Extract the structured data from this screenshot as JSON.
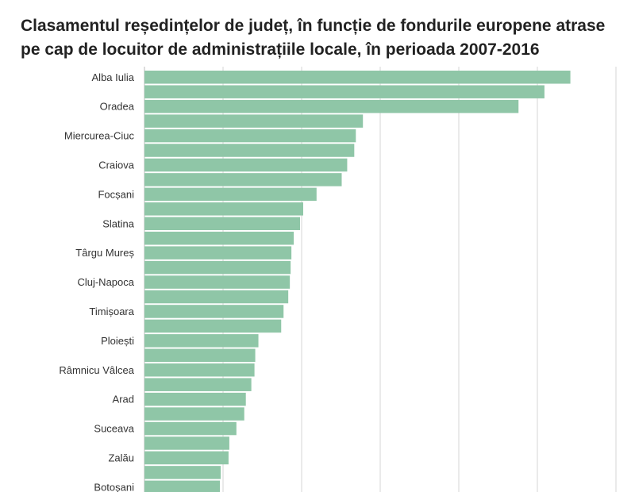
{
  "title_lines": [
    "Clasamentul reședințelor de județ, în funcție de fondurile europene atrase",
    "pe cap de locuitor de administrațiile locale, în perioada 2007-2016"
  ],
  "chart_data": {
    "type": "bar",
    "orientation": "horizontal",
    "title": "Clasamentul reședințelor de județ, în funcție de fondurile europene atrase pe cap de locuitor de administrațiile locale, în perioada 2007-2016",
    "xlabel": "",
    "ylabel": "",
    "bar_color": "#8fc6a7",
    "grid": true,
    "xlim": [
      0,
      600
    ],
    "gridlines": [
      0,
      100,
      200,
      300,
      400,
      500,
      600
    ],
    "categories": [
      "Alba Iulia",
      "",
      "Oradea",
      "",
      "Miercurea-Ciuc",
      "",
      "Craiova",
      "",
      "Focșani",
      "",
      "Slatina",
      "",
      "Târgu Mureș",
      "",
      "Cluj-Napoca",
      "",
      "Timișoara",
      "",
      "Ploiești",
      "",
      "Râmnicu Vâlcea",
      "",
      "Arad",
      "",
      "Suceava",
      "",
      "Zalău",
      "",
      "Botoșani"
    ],
    "values": [
      542,
      509,
      476,
      278,
      269,
      267,
      258,
      251,
      219,
      202,
      198,
      190,
      187,
      186,
      185,
      183,
      177,
      174,
      145,
      141,
      140,
      136,
      129,
      127,
      117,
      108,
      107,
      97,
      96
    ]
  }
}
